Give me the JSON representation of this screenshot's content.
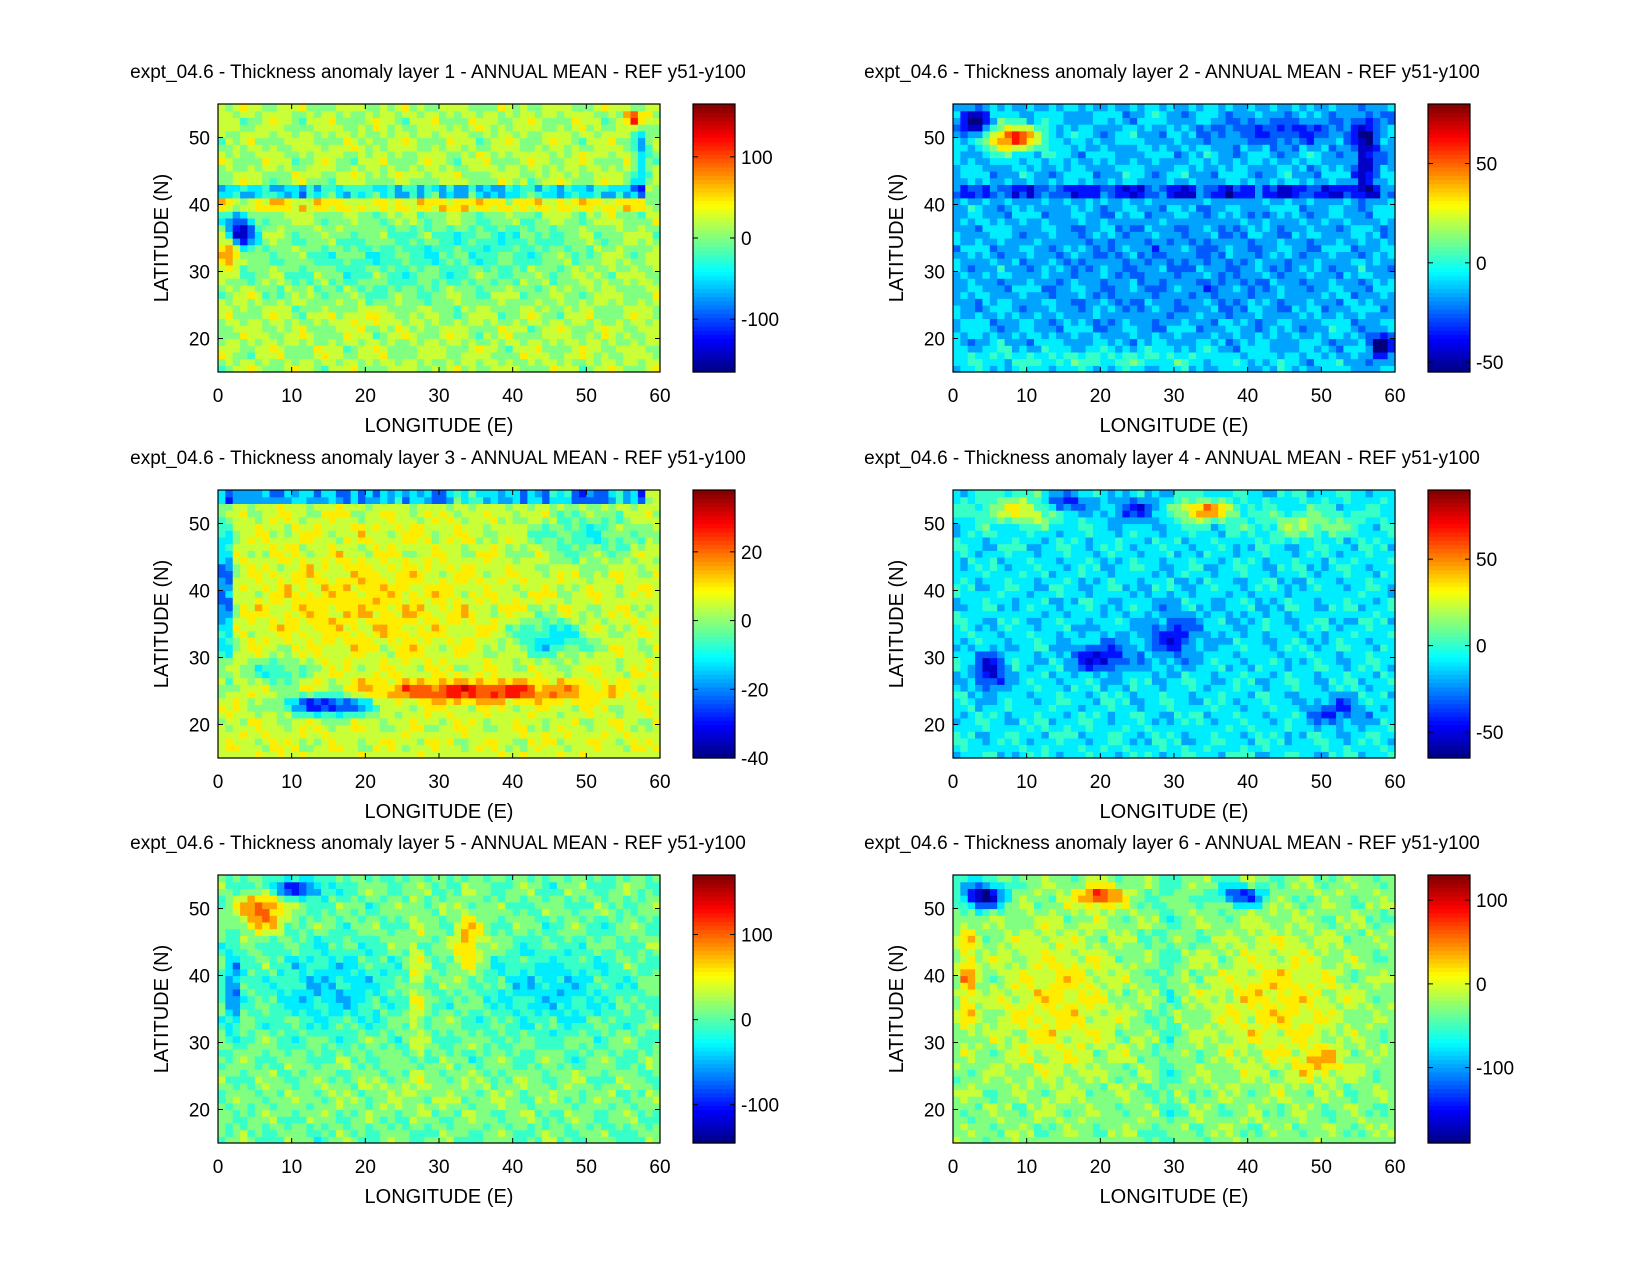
{
  "figure": {
    "xlabel": "LONGITUDE (E)",
    "ylabel": "LATITUDE (N)",
    "x_ticks": [
      0,
      10,
      20,
      30,
      40,
      50,
      60
    ],
    "y_ticks": [
      20,
      30,
      40,
      50
    ],
    "xlim": [
      0,
      60
    ],
    "ylim": [
      15,
      55
    ]
  },
  "chart_data": [
    {
      "type": "heatmap",
      "title": "expt_04.6 - Thickness anomaly layer 1 - ANNUAL MEAN - REF y51-y100",
      "xlabel": "LONGITUDE (E)",
      "ylabel": "LATITUDE (N)",
      "xlim": [
        0,
        60
      ],
      "ylim": [
        15,
        55
      ],
      "colorbar": {
        "range": [
          -165,
          165
        ],
        "ticks": [
          -100,
          0,
          100
        ]
      },
      "field": {
        "background": 15,
        "features": [
          {
            "type": "blob",
            "x": 3,
            "y": 36,
            "sx": 2,
            "sy": 3,
            "v": -160
          },
          {
            "type": "blob",
            "x": 1.5,
            "y": 33,
            "sx": 1.5,
            "sy": 2,
            "v": 120
          },
          {
            "type": "band",
            "y": 42,
            "x0": 0,
            "x1": 58,
            "w": 0.8,
            "v": -90
          },
          {
            "type": "band",
            "y": 40,
            "x0": 0,
            "x1": 58,
            "w": 0.8,
            "v": 45
          },
          {
            "type": "blob",
            "x": 25,
            "y": 31,
            "sx": 20,
            "sy": 6,
            "v": -35
          },
          {
            "type": "blob",
            "x": 40,
            "y": 35,
            "sx": 12,
            "sy": 3,
            "v": -25
          },
          {
            "type": "blob",
            "x": 20,
            "y": 23,
            "sx": 4,
            "sy": 1.5,
            "v": 30
          },
          {
            "type": "blob",
            "x": 57.5,
            "y": 48,
            "sx": 1,
            "sy": 7,
            "v": -70
          },
          {
            "type": "blob",
            "x": 57,
            "y": 53,
            "sx": 1.5,
            "sy": 1.2,
            "v": 110
          }
        ]
      }
    },
    {
      "type": "heatmap",
      "title": "expt_04.6 - Thickness anomaly layer 2 - ANNUAL MEAN - REF y51-y100",
      "xlabel": "LONGITUDE (E)",
      "ylabel": "LATITUDE (N)",
      "xlim": [
        0,
        60
      ],
      "ylim": [
        15,
        55
      ],
      "colorbar": {
        "range": [
          -55,
          80
        ],
        "ticks": [
          -50,
          0,
          50
        ]
      },
      "field": {
        "background": -12,
        "features": [
          {
            "type": "blob",
            "x": 30,
            "y": 30,
            "sx": 22,
            "sy": 9,
            "v": -8
          },
          {
            "type": "blob",
            "x": 8,
            "y": 50,
            "sx": 4,
            "sy": 2,
            "v": 70
          },
          {
            "type": "blob",
            "x": 3,
            "y": 52,
            "sx": 2,
            "sy": 2,
            "v": -50
          },
          {
            "type": "band",
            "y": 42,
            "x0": 0,
            "x1": 58,
            "w": 0.8,
            "v": -30
          },
          {
            "type": "blob",
            "x": 56,
            "y": 48,
            "sx": 1.5,
            "sy": 6,
            "v": -40
          },
          {
            "type": "blob",
            "x": 58,
            "y": 19,
            "sx": 1.5,
            "sy": 2,
            "v": -45
          },
          {
            "type": "blob",
            "x": 20,
            "y": 17,
            "sx": 20,
            "sy": 1.5,
            "v": 15
          },
          {
            "type": "blob",
            "x": 45,
            "y": 51,
            "sx": 10,
            "sy": 2,
            "v": -20
          }
        ]
      }
    },
    {
      "type": "heatmap",
      "title": "expt_04.6 - Thickness anomaly layer 3 - ANNUAL MEAN - REF y51-y100",
      "xlabel": "LONGITUDE (E)",
      "ylabel": "LATITUDE (N)",
      "xlim": [
        0,
        60
      ],
      "ylim": [
        15,
        55
      ],
      "colorbar": {
        "range": [
          -40,
          38
        ],
        "ticks": [
          -40,
          -20,
          0,
          20
        ]
      },
      "field": {
        "background": 5,
        "features": [
          {
            "type": "blob",
            "x": 20,
            "y": 38,
            "sx": 15,
            "sy": 7,
            "v": 6
          },
          {
            "type": "blob",
            "x": 15,
            "y": 23,
            "sx": 6,
            "sy": 1.5,
            "v": -38
          },
          {
            "type": "blob",
            "x": 35,
            "y": 25,
            "sx": 15,
            "sy": 1.5,
            "v": 22
          },
          {
            "type": "blob",
            "x": 45,
            "y": 33,
            "sx": 5,
            "sy": 3,
            "v": -18
          },
          {
            "type": "blob",
            "x": 1,
            "y": 40,
            "sx": 1,
            "sy": 10,
            "v": -35
          },
          {
            "type": "band",
            "y": 54,
            "x0": 0,
            "x1": 58,
            "w": 0.8,
            "v": -30
          },
          {
            "type": "blob",
            "x": 50,
            "y": 48,
            "sx": 8,
            "sy": 4,
            "v": -12
          },
          {
            "type": "blob",
            "x": 8,
            "y": 28,
            "sx": 4,
            "sy": 2,
            "v": -15
          }
        ]
      }
    },
    {
      "type": "heatmap",
      "title": "expt_04.6 - Thickness anomaly layer 4 - ANNUAL MEAN - REF y51-y100",
      "xlabel": "LONGITUDE (E)",
      "ylabel": "LATITUDE (N)",
      "xlim": [
        0,
        60
      ],
      "ylim": [
        15,
        55
      ],
      "colorbar": {
        "range": [
          -65,
          90
        ],
        "ticks": [
          -50,
          0,
          50
        ]
      },
      "field": {
        "background": -8,
        "features": [
          {
            "type": "blob",
            "x": 30,
            "y": 35,
            "sx": 20,
            "sy": 10,
            "v": -5
          },
          {
            "type": "blob",
            "x": 5,
            "y": 28,
            "sx": 2,
            "sy": 3,
            "v": -45
          },
          {
            "type": "blob",
            "x": 20,
            "y": 30,
            "sx": 4,
            "sy": 2,
            "v": -40
          },
          {
            "type": "blob",
            "x": 30,
            "y": 33,
            "sx": 3,
            "sy": 3,
            "v": -35
          },
          {
            "type": "blob",
            "x": 10,
            "y": 52,
            "sx": 6,
            "sy": 2,
            "v": 40
          },
          {
            "type": "blob",
            "x": 34,
            "y": 52,
            "sx": 4,
            "sy": 1.5,
            "v": 60
          },
          {
            "type": "blob",
            "x": 15,
            "y": 53,
            "sx": 3,
            "sy": 1.5,
            "v": -50
          },
          {
            "type": "blob",
            "x": 25,
            "y": 52,
            "sx": 4,
            "sy": 2,
            "v": -30
          },
          {
            "type": "blob",
            "x": 52,
            "y": 22,
            "sx": 4,
            "sy": 2,
            "v": -30
          },
          {
            "type": "blob",
            "x": 48,
            "y": 50,
            "sx": 6,
            "sy": 2,
            "v": 25
          }
        ]
      }
    },
    {
      "type": "heatmap",
      "title": "expt_04.6 - Thickness anomaly layer 5 - ANNUAL MEAN - REF y51-y100",
      "xlabel": "LONGITUDE (E)",
      "ylabel": "LATITUDE (N)",
      "xlim": [
        0,
        60
      ],
      "ylim": [
        15,
        55
      ],
      "colorbar": {
        "range": [
          -145,
          170
        ],
        "ticks": [
          -100,
          0,
          100
        ]
      },
      "field": {
        "background": 5,
        "features": [
          {
            "type": "blob",
            "x": 15,
            "y": 38,
            "sx": 8,
            "sy": 6,
            "v": -45
          },
          {
            "type": "blob",
            "x": 45,
            "y": 38,
            "sx": 9,
            "sy": 6,
            "v": -40
          },
          {
            "type": "blob",
            "x": 6,
            "y": 50,
            "sx": 3,
            "sy": 3,
            "v": 110
          },
          {
            "type": "blob",
            "x": 34,
            "y": 45,
            "sx": 2,
            "sy": 5,
            "v": 70
          },
          {
            "type": "blob",
            "x": 10,
            "y": 53,
            "sx": 5,
            "sy": 1.5,
            "v": -100
          },
          {
            "type": "blob",
            "x": 27,
            "y": 38,
            "sx": 1,
            "sy": 12,
            "v": 45
          },
          {
            "type": "blob",
            "x": 2,
            "y": 38,
            "sx": 1,
            "sy": 6,
            "v": -80
          },
          {
            "type": "blob",
            "x": 30,
            "y": 22,
            "sx": 22,
            "sy": 3,
            "v": 15
          }
        ]
      }
    },
    {
      "type": "heatmap",
      "title": "expt_04.6 - Thickness anomaly layer 6 - ANNUAL MEAN - REF y51-y100",
      "xlabel": "LONGITUDE (E)",
      "ylabel": "LATITUDE (N)",
      "xlim": [
        0,
        60
      ],
      "ylim": [
        15,
        55
      ],
      "colorbar": {
        "range": [
          -190,
          130
        ],
        "ticks": [
          -100,
          0,
          100
        ]
      },
      "field": {
        "background": -30,
        "features": [
          {
            "type": "blob",
            "x": 14,
            "y": 36,
            "sx": 8,
            "sy": 11,
            "v": 45
          },
          {
            "type": "blob",
            "x": 44,
            "y": 36,
            "sx": 9,
            "sy": 10,
            "v": 45
          },
          {
            "type": "blob",
            "x": 4,
            "y": 52,
            "sx": 3,
            "sy": 2,
            "v": -160
          },
          {
            "type": "blob",
            "x": 20,
            "y": 52,
            "sx": 3,
            "sy": 1.5,
            "v": 110
          },
          {
            "type": "blob",
            "x": 39,
            "y": 52,
            "sx": 3,
            "sy": 1.5,
            "v": -120
          },
          {
            "type": "blob",
            "x": 50,
            "y": 27,
            "sx": 3,
            "sy": 2,
            "v": 60
          },
          {
            "type": "blob",
            "x": 29,
            "y": 35,
            "sx": 1.5,
            "sy": 30,
            "v": -25
          },
          {
            "type": "blob",
            "x": 2,
            "y": 40,
            "sx": 1,
            "sy": 8,
            "v": 70
          }
        ]
      }
    }
  ]
}
